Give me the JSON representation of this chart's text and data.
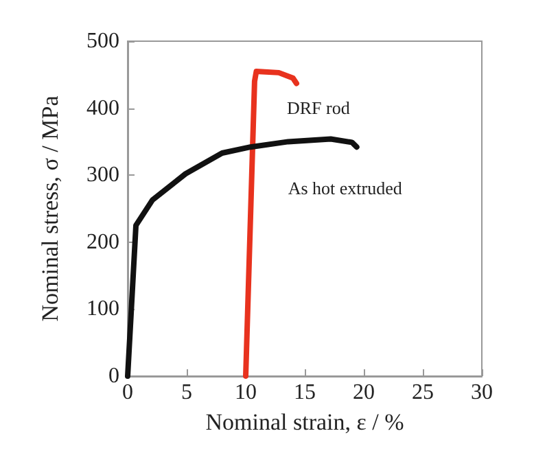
{
  "chart_data": {
    "type": "line",
    "xlabel": "Nominal strain, ε / %",
    "ylabel": "Nominal stress, σ / MPa",
    "xlim": [
      0,
      30
    ],
    "xticks": [
      0,
      5,
      10,
      15,
      20,
      25,
      30
    ],
    "ylim": [
      0,
      500
    ],
    "yticks": [
      0,
      100,
      200,
      300,
      400,
      500
    ],
    "grid": false,
    "legend": false,
    "marker": "none",
    "line_style": "solid",
    "series": [
      {
        "name": "DRF rod",
        "color": "#e8321e",
        "x": [
          10,
          10.75,
          10.9,
          12.8,
          14,
          14.3
        ],
        "values": [
          0,
          440,
          455,
          453,
          445,
          437
        ]
      },
      {
        "name": "As hot extruded",
        "color": "#111111",
        "x": [
          0,
          0.7,
          2.1,
          4.9,
          8,
          10.4,
          13.6,
          17.2,
          19,
          19.4
        ],
        "values": [
          0,
          225,
          263,
          302,
          333,
          342,
          350,
          354,
          349,
          342
        ]
      }
    ]
  }
}
